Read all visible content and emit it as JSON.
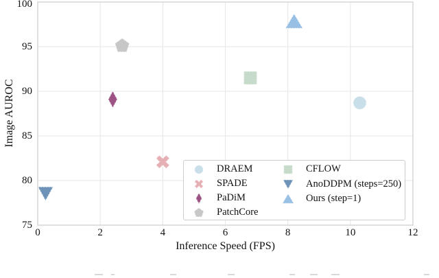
{
  "chart_data": {
    "type": "scatter",
    "title": "",
    "xlabel": "Inference Speed (FPS)",
    "ylabel": "Image AUROC",
    "xlim": [
      0,
      12
    ],
    "ylim": [
      75,
      100
    ],
    "xticks": [
      0,
      2,
      4,
      6,
      8,
      10,
      12
    ],
    "yticks": [
      75,
      80,
      85,
      90,
      95,
      100
    ],
    "grid": true,
    "legend_position": "lower-right-inside",
    "series": [
      {
        "name": "DRAEM",
        "marker": "circle",
        "color": "#c8dfe9",
        "x": 10.3,
        "y": 88.7
      },
      {
        "name": "SPADE",
        "marker": "x",
        "color": "#e5afb4",
        "x": 4.0,
        "y": 82.1
      },
      {
        "name": "PaDiM",
        "marker": "thin-diamond",
        "color": "#9c5383",
        "x": 2.4,
        "y": 89.1
      },
      {
        "name": "PatchCore",
        "marker": "pentagon",
        "color": "#c8c7c7",
        "x": 2.7,
        "y": 95.1
      },
      {
        "name": "CFLOW",
        "marker": "square",
        "color": "#c6dbca",
        "x": 6.8,
        "y": 91.5
      },
      {
        "name": "AnoDDPM (steps=250)",
        "marker": "triangle-down",
        "color": "#6d94b8",
        "x": 0.25,
        "y": 78.6
      },
      {
        "name": "Ours (step=1)",
        "marker": "triangle-up",
        "color": "#98c0e5",
        "x": 8.2,
        "y": 97.8
      }
    ]
  },
  "colors": {
    "grid": "#e9e9e9",
    "spine": "#d5d5d5",
    "text": "#111111",
    "legend_border": "#cccccc"
  }
}
